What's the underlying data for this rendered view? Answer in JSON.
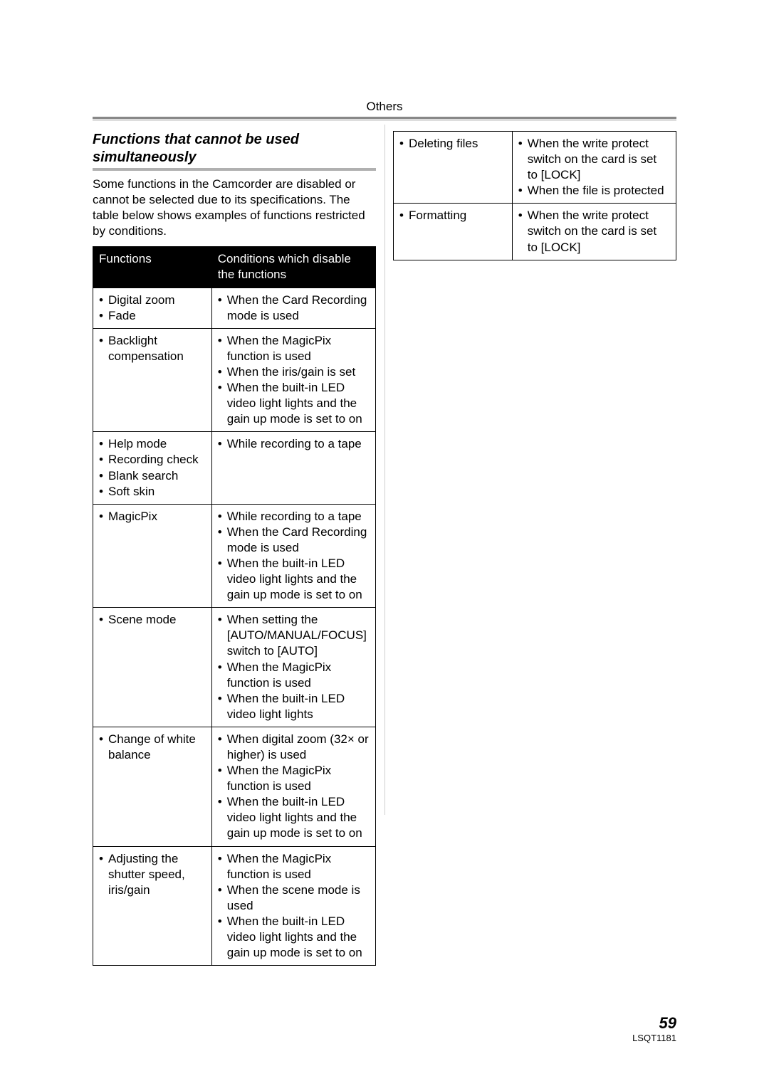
{
  "section_header": "Others",
  "subtitle": "Functions that cannot be used simultaneously",
  "intro": "Some functions in the Camcorder are disabled or cannot be selected due to its specifications. The table below shows examples of functions restricted by conditions.",
  "table1": {
    "head": [
      "Functions",
      "Conditions which disable the functions"
    ],
    "rows": [
      {
        "funcs": [
          "Digital zoom",
          "Fade"
        ],
        "conds": [
          "When the Card Recording mode is used"
        ]
      },
      {
        "funcs": [
          "Backlight compensation"
        ],
        "conds": [
          "When the MagicPix function is used",
          "When the iris/gain is set",
          "When the built-in LED video light lights and the gain up mode is set to on"
        ]
      },
      {
        "funcs": [
          "Help mode",
          "Recording check",
          "Blank search",
          "Soft skin"
        ],
        "conds": [
          "While recording to a tape"
        ]
      },
      {
        "funcs": [
          "MagicPix"
        ],
        "conds": [
          "While recording to a tape",
          "When the Card Recording mode is used",
          "When the built-in LED video light lights and the gain up mode is set to on"
        ]
      },
      {
        "funcs": [
          "Scene mode"
        ],
        "conds": [
          "When setting the [AUTO/MANUAL/FOCUS] switch to [AUTO]",
          "When the MagicPix function is used",
          "When the built-in LED video light lights"
        ]
      },
      {
        "funcs": [
          "Change of white balance"
        ],
        "conds": [
          "When digital zoom (32× or higher) is used",
          "When the MagicPix function is used",
          "When the built-in LED video light lights and the gain up mode is set to on"
        ]
      },
      {
        "funcs": [
          "Adjusting the shutter speed, iris/gain"
        ],
        "conds": [
          "When the MagicPix function is used",
          "When the scene mode is used",
          "When the built-in LED video light lights and the gain up mode is set to on"
        ]
      }
    ]
  },
  "table2": {
    "rows": [
      {
        "funcs": [
          "Deleting files"
        ],
        "conds": [
          "When the write protect switch on the card is set to [LOCK]",
          "When the file is protected"
        ]
      },
      {
        "funcs": [
          "Formatting"
        ],
        "conds": [
          "When the write protect switch on the card is set to [LOCK]"
        ]
      }
    ]
  },
  "page_number": "59",
  "doc_id": "LSQT1181"
}
